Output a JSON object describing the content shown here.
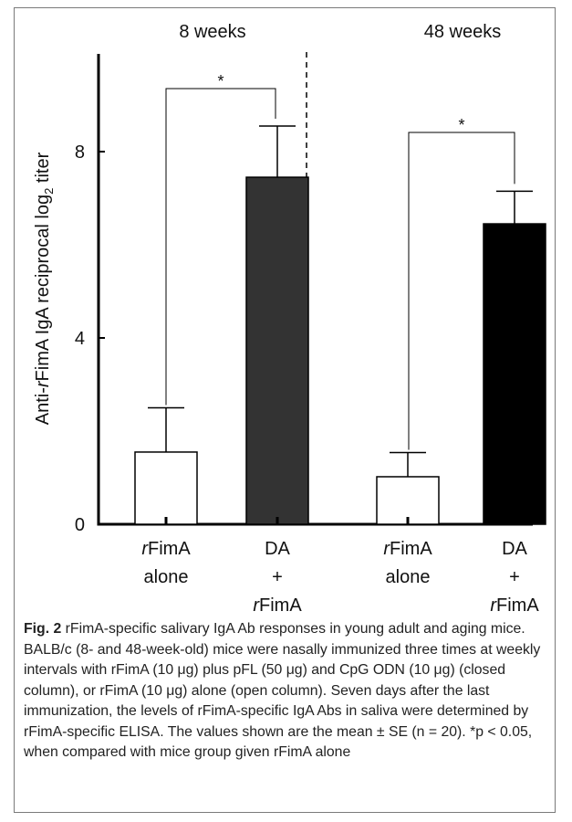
{
  "chart_data": {
    "type": "bar",
    "title": "",
    "ylabel": "Anti-rFimA IgA reciprocal log2 titer",
    "ylabel_parts": {
      "prefix": "Anti-",
      "italic": "r",
      "middle": "FimA IgA reciprocal log",
      "subscript": "2",
      "suffix": " titer"
    },
    "ylim": [
      0,
      10
    ],
    "yticks": [
      {
        "value": 0,
        "label": "0"
      },
      {
        "value": 4,
        "label": "4"
      },
      {
        "value": 8,
        "label": "8"
      }
    ],
    "groups": [
      {
        "label": "8 weeks",
        "bars": [
          {
            "category_lines": [
              {
                "italic": "r",
                "text": "FimA"
              },
              {
                "italic": "",
                "text": "alone"
              }
            ],
            "value": 1.55,
            "error": 0.95,
            "fill": "#ffffff"
          },
          {
            "category_lines": [
              {
                "italic": "",
                "text": "DA"
              },
              {
                "italic": "",
                "text": "+"
              },
              {
                "italic": "r",
                "text": "FimA"
              }
            ],
            "value": 7.45,
            "error": 1.1,
            "fill": "#333333"
          }
        ],
        "significance": "*"
      },
      {
        "label": "48 weeks",
        "bars": [
          {
            "category_lines": [
              {
                "italic": "r",
                "text": "FimA"
              },
              {
                "italic": "",
                "text": "alone"
              }
            ],
            "value": 1.02,
            "error": 0.52,
            "fill": "#ffffff"
          },
          {
            "category_lines": [
              {
                "italic": "",
                "text": "DA"
              },
              {
                "italic": "",
                "text": "+"
              },
              {
                "italic": "r",
                "text": "FimA"
              }
            ],
            "value": 6.45,
            "error": 0.7,
            "fill": "#000000"
          }
        ],
        "significance": "*"
      }
    ],
    "grid": false,
    "legend": "none"
  },
  "caption": {
    "fig_label": "Fig. 2",
    "text": " rFimA-specific salivary IgA Ab responses in young adult and aging mice. BALB/c (8- and 48-week-old) mice were nasally immunized three times at weekly intervals with rFimA (10 μg) plus pFL (50 μg) and CpG ODN (10 μg) (closed column), or rFimA (10 μg) alone (open column). Seven days after the last immunization, the levels of rFimA-specific IgA Abs in saliva were determined by rFimA-specific ELISA. The values shown are the mean ± SE (n = 20). *p < 0.05, when compared with mice group given rFimA alone"
  }
}
